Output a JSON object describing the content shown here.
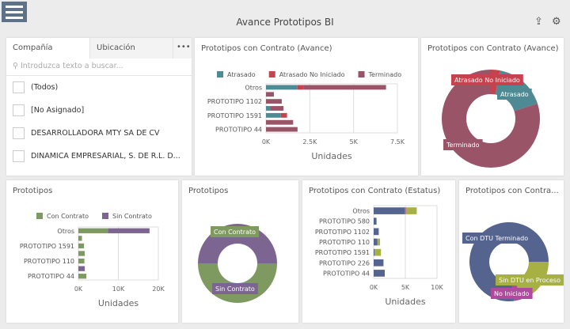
{
  "header": {
    "title": "Avance Prototipos BI",
    "menu_icon": "hamburger-icon",
    "export_icon": "export-icon",
    "settings_icon": "filter-settings-icon"
  },
  "filter": {
    "tabs": [
      "Compañía",
      "Ubicación"
    ],
    "more": "•••",
    "search_placeholder": "Introduzca texto a buscar...",
    "items": [
      "(Todos)",
      "[No Asignado]",
      "DESARROLLADORA MTY SA DE CV",
      "DINAMICA EMPRESARIAL, S. DE R.L. D..."
    ]
  },
  "colors": {
    "atrasado": "#4e8a93",
    "atrasado_no_iniciado": "#c7424f",
    "terminado": "#9a5468",
    "con_contrato": "#7f9a61",
    "sin_contrato": "#7d6592",
    "con_dtu": "#55648f",
    "sin_dtu": "#a6b043",
    "no_iniciado": "#b04a9e"
  },
  "chart_data": [
    {
      "type": "bar",
      "stacked": true,
      "orientation": "horizontal",
      "title": "Prototipos con Contrato (Avance)",
      "xlabel": "Unidades",
      "xlim": [
        0,
        7500
      ],
      "ticks": [
        "0K",
        "2.5K",
        "5K",
        "7.5K"
      ],
      "legend": "top",
      "categories": [
        "Otros",
        "",
        "PROTOTIPO 1102",
        "",
        "PROTOTIPO 1591",
        "",
        "PROTOTIPO 44"
      ],
      "series": [
        {
          "name": "Atrasado",
          "color": "#4e8a93",
          "values": [
            1800,
            0,
            0,
            250,
            850,
            0,
            0
          ]
        },
        {
          "name": "Atrasado No Iniciado",
          "color": "#c7424f",
          "values": [
            350,
            0,
            0,
            0,
            350,
            0,
            0
          ]
        },
        {
          "name": "Terminado",
          "color": "#9a5468",
          "values": [
            4700,
            450,
            900,
            750,
            0,
            1550,
            1800
          ]
        }
      ]
    },
    {
      "type": "pie",
      "donut": true,
      "title": "Prototipos con Contrato (Avance)",
      "slices": [
        {
          "name": "Atrasado No Iniciado",
          "value": 3,
          "color": "#c7424f"
        },
        {
          "name": "Atrasado",
          "value": 17,
          "color": "#4e8a93"
        },
        {
          "name": "Terminado",
          "value": 80,
          "color": "#9a5468"
        }
      ]
    },
    {
      "type": "bar",
      "stacked": true,
      "orientation": "horizontal",
      "title": "Prototipos",
      "xlabel": "Unidades",
      "xlim": [
        0,
        20000
      ],
      "ticks": [
        "0K",
        "10K",
        "20K"
      ],
      "legend": "top",
      "categories": [
        "Otros",
        "",
        "PROTOTIPO 1591",
        "",
        "PROTOTIPO 110",
        "",
        "PROTOTIPO 44"
      ],
      "series": [
        {
          "name": "Con Contrato",
          "color": "#7f9a61",
          "values": [
            7400,
            900,
            1400,
            1600,
            1500,
            0,
            2000
          ]
        },
        {
          "name": "Sin Contrato",
          "color": "#7d6592",
          "values": [
            10400,
            0,
            0,
            0,
            0,
            1600,
            0
          ]
        }
      ]
    },
    {
      "type": "pie",
      "donut": true,
      "title": "Prototipos",
      "slices": [
        {
          "name": "Con Contrato",
          "value": 50,
          "color": "#7f9a61"
        },
        {
          "name": "Sin Contrato",
          "value": 50,
          "color": "#7d6592"
        }
      ]
    },
    {
      "type": "bar",
      "stacked": true,
      "orientation": "horizontal",
      "title": "Prototipos con Contrato (Estatus)",
      "xlabel": "Unidades",
      "xlim": [
        0,
        10000
      ],
      "ticks": [
        "0K",
        "5K",
        "10K"
      ],
      "categories": [
        "Otros",
        "PROTOTIPO 580",
        "PROTOTIPO 1102",
        "PROTOTIPO 110",
        "PROTOTIPO 1591",
        "PROTOTIPO 226",
        "PROTOTIPO 44"
      ],
      "series": [
        {
          "color": "#55648f",
          "values": [
            4900,
            450,
            800,
            600,
            150,
            1550,
            1750
          ]
        },
        {
          "color": "#b04a9e",
          "values": [
            200,
            0,
            0,
            0,
            0,
            0,
            0
          ]
        },
        {
          "color": "#a6b043",
          "values": [
            1700,
            0,
            0,
            400,
            1000,
            0,
            0
          ]
        }
      ]
    },
    {
      "type": "pie",
      "donut": true,
      "title": "Prototipos con Contra...",
      "slices": [
        {
          "name": "Sin DTU en Proceso",
          "value": 20,
          "color": "#a6b043"
        },
        {
          "name": "No Iniciado",
          "value": 3,
          "color": "#b04a9e"
        },
        {
          "name": "Con DTU Terminado",
          "value": 77,
          "color": "#55648f"
        }
      ]
    }
  ]
}
